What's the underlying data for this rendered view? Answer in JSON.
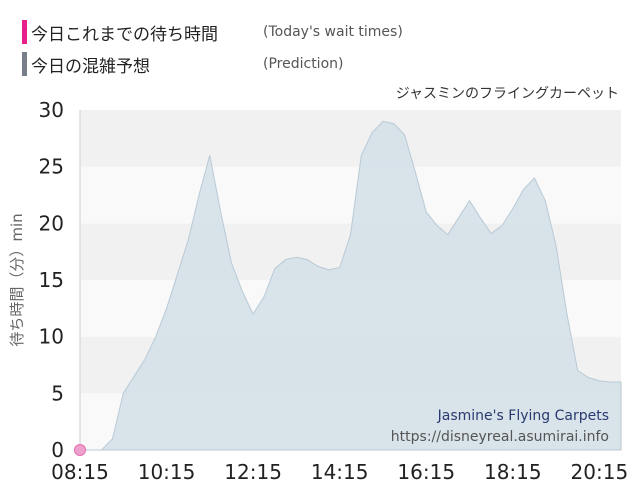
{
  "legend": [
    {
      "label": "今日これまでの待ち時間",
      "sub": "(Today's wait times)",
      "color": "#e8208c"
    },
    {
      "label": "今日の混雑予想",
      "sub": "(Prediction)",
      "color": "#787f8a"
    }
  ],
  "attraction_title": "ジャスミンのフライングカーペット",
  "watermark": {
    "name": "Jasmine's Flying Carpets",
    "url": "https://disneyreal.asumirai.info"
  },
  "chart_data": {
    "type": "area",
    "ylabel": "待ち時間（分）min",
    "xlabel": "",
    "ylim": [
      0,
      30
    ],
    "yticks": [
      "0",
      "5",
      "10",
      "15",
      "20",
      "25",
      "30"
    ],
    "xticks": [
      "08:15",
      "10:15",
      "12:15",
      "14:15",
      "16:15",
      "18:15",
      "20:15"
    ],
    "xlim": [
      "08:15",
      "20:45"
    ],
    "grid": "horizontal bands",
    "series": [
      {
        "name": "今日の混雑予想",
        "color": "#d2dfe8",
        "points": [
          [
            "08:15",
            0
          ],
          [
            "08:45",
            0
          ],
          [
            "09:00",
            1
          ],
          [
            "09:15",
            5
          ],
          [
            "09:30",
            6.5
          ],
          [
            "09:45",
            8
          ],
          [
            "10:00",
            10
          ],
          [
            "10:15",
            12.5
          ],
          [
            "10:30",
            15.5
          ],
          [
            "10:45",
            18.5
          ],
          [
            "11:00",
            22.5
          ],
          [
            "11:15",
            26
          ],
          [
            "11:30",
            21
          ],
          [
            "11:45",
            16.5
          ],
          [
            "12:00",
            14
          ],
          [
            "12:15",
            12
          ],
          [
            "12:30",
            13.5
          ],
          [
            "12:45",
            16
          ],
          [
            "13:00",
            16.8
          ],
          [
            "13:15",
            17
          ],
          [
            "13:30",
            16.8
          ],
          [
            "13:45",
            16.2
          ],
          [
            "14:00",
            15.9
          ],
          [
            "14:15",
            16.1
          ],
          [
            "14:30",
            19
          ],
          [
            "14:45",
            26
          ],
          [
            "15:00",
            28
          ],
          [
            "15:15",
            29
          ],
          [
            "15:30",
            28.8
          ],
          [
            "15:45",
            27.8
          ],
          [
            "16:00",
            24.5
          ],
          [
            "16:15",
            21
          ],
          [
            "16:30",
            19.8
          ],
          [
            "16:45",
            19
          ],
          [
            "17:00",
            20.5
          ],
          [
            "17:15",
            22
          ],
          [
            "17:30",
            20.5
          ],
          [
            "17:45",
            19.1
          ],
          [
            "18:00",
            19.8
          ],
          [
            "18:15",
            21.3
          ],
          [
            "18:30",
            23
          ],
          [
            "18:45",
            24
          ],
          [
            "19:00",
            22
          ],
          [
            "19:15",
            18
          ],
          [
            "19:30",
            12
          ],
          [
            "19:45",
            7
          ],
          [
            "20:00",
            6.4
          ],
          [
            "20:15",
            6.1
          ],
          [
            "20:30",
            6
          ],
          [
            "20:45",
            6
          ]
        ]
      },
      {
        "name": "今日これまでの待ち時間",
        "color": "#f0a0cc",
        "points": [
          [
            "08:15",
            0
          ]
        ]
      }
    ]
  }
}
